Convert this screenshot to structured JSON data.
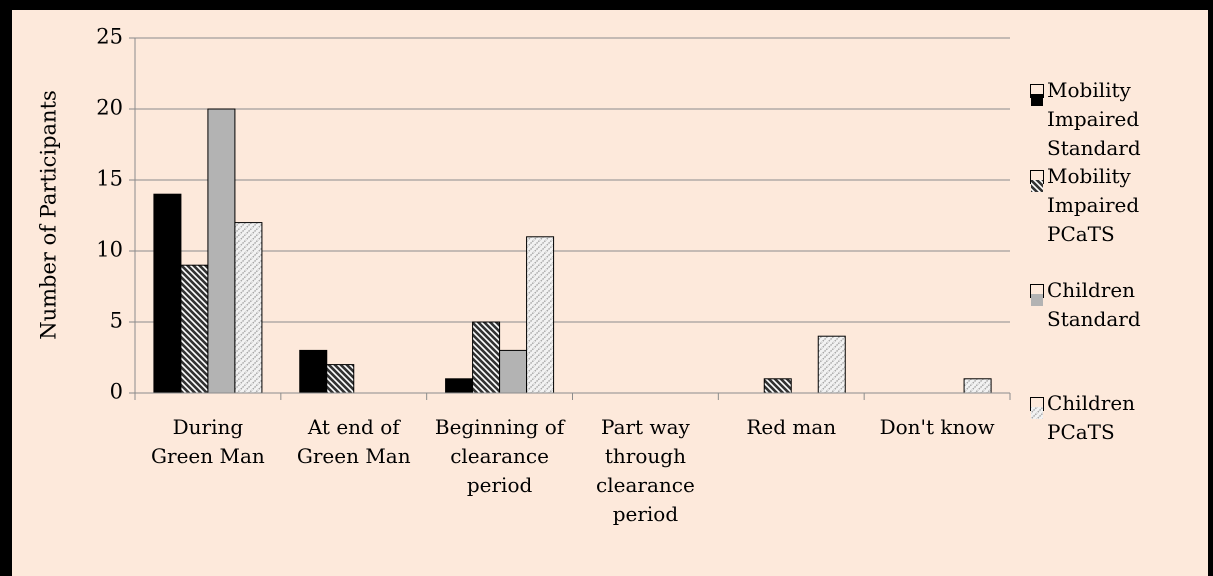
{
  "chart_data": {
    "type": "bar",
    "ylabel": "Number of Participants",
    "categories": [
      "During Green Man",
      "At end of Green Man",
      "Beginning of clearance period",
      "Part way through clearance period",
      "Red man",
      "Don't know"
    ],
    "series": [
      {
        "name": "Mobility Impaired Standard",
        "color": "#000000",
        "pattern": "solid",
        "values": [
          14,
          3,
          1,
          0,
          0,
          0
        ]
      },
      {
        "name": "Mobility Impaired PCaTS",
        "color": "#333333",
        "pattern": "hatch-dark",
        "values": [
          9,
          2,
          5,
          0,
          1,
          0
        ]
      },
      {
        "name": "Children Standard",
        "color": "#b3b3b3",
        "pattern": "solid",
        "values": [
          20,
          0,
          3,
          0,
          0,
          0
        ]
      },
      {
        "name": "Children PCaTS",
        "color": "#a6a6a6",
        "pattern": "hatch-light",
        "values": [
          12,
          0,
          11,
          0,
          4,
          1
        ]
      }
    ],
    "ylim": [
      0,
      25
    ],
    "yticks": [
      0,
      5,
      10,
      15,
      20,
      25
    ],
    "grid": true,
    "legend": "right"
  }
}
